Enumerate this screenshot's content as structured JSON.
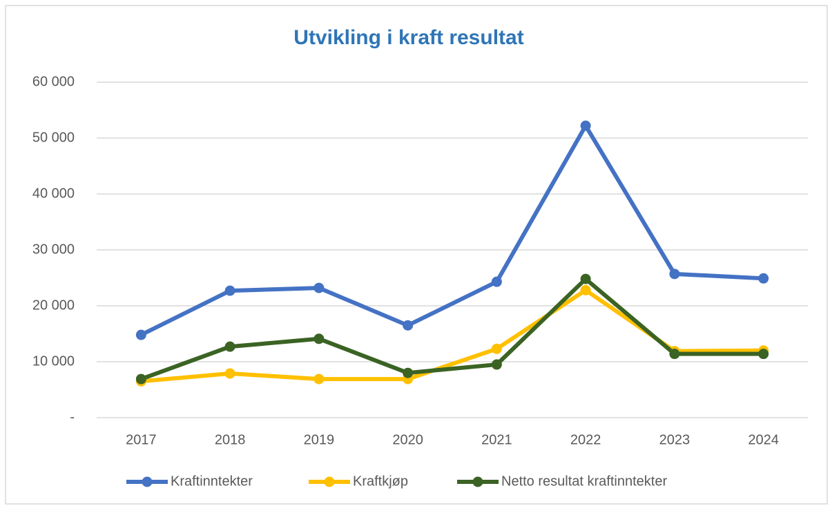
{
  "chart_data": {
    "type": "line",
    "title": "Utvikling i kraft resultat",
    "categories": [
      "2017",
      "2018",
      "2019",
      "2020",
      "2021",
      "2022",
      "2023",
      "2024"
    ],
    "series": [
      {
        "name": "Kraftinntekter",
        "color": "#4472c4",
        "values": [
          14800,
          22700,
          23200,
          16500,
          24300,
          52200,
          25700,
          24900
        ]
      },
      {
        "name": "Kraftkjøp",
        "color": "#ffc000",
        "values": [
          6500,
          7900,
          6900,
          6900,
          12300,
          22800,
          11900,
          12000
        ]
      },
      {
        "name": "Netto resultat kraftinntekter",
        "color": "#3b6324",
        "values": [
          6900,
          12700,
          14100,
          8000,
          9500,
          24800,
          11400,
          11400
        ]
      }
    ],
    "ylim": [
      0,
      60000
    ],
    "yticks": [
      {
        "value": 0,
        "label": "-"
      },
      {
        "value": 10000,
        "label": "10 000"
      },
      {
        "value": 20000,
        "label": "20 000"
      },
      {
        "value": 30000,
        "label": "30 000"
      },
      {
        "value": 40000,
        "label": "40 000"
      },
      {
        "value": 50000,
        "label": "50 000"
      },
      {
        "value": 60000,
        "label": "60 000"
      }
    ],
    "grid": true,
    "legend": "bottom"
  }
}
